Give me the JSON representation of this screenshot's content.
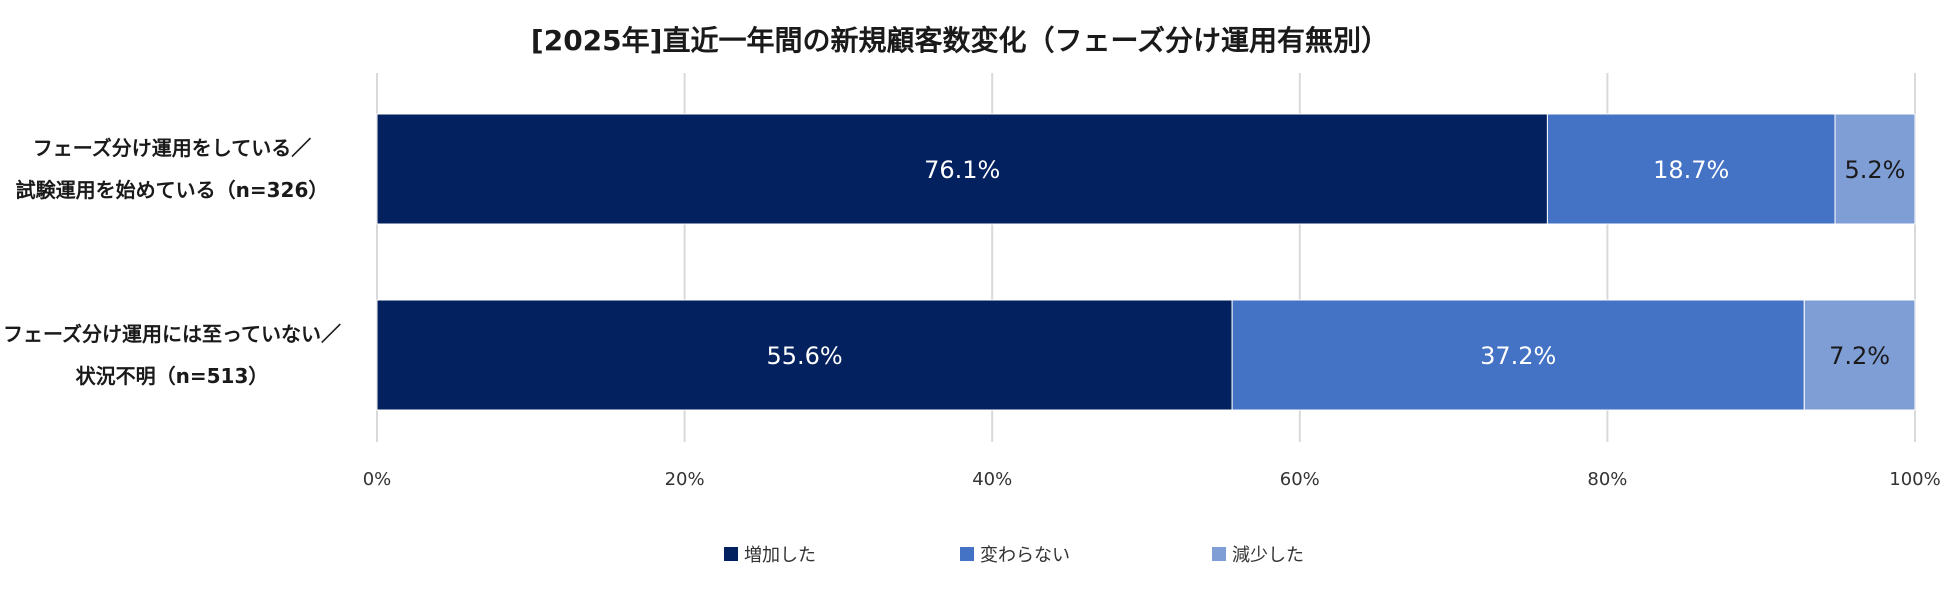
{
  "chart_data": {
    "type": "bar",
    "orientation": "horizontal",
    "stacked": true,
    "title": "[2025年]直近一年間の新規顧客数変化（フェーズ分け運用有無別）",
    "categories": [
      [
        "フェーズ分け運用をしている／",
        "試験運用を始めている（n=326）"
      ],
      [
        "フェーズ分け運用には至っていない／",
        "状況不明（n=513）"
      ]
    ],
    "series": [
      {
        "name": "増加した",
        "color": "#03215e",
        "label_color": "#ffffff",
        "values": [
          76.1,
          55.6
        ]
      },
      {
        "name": "変わらない",
        "color": "#4472c4",
        "label_color": "#ffffff",
        "values": [
          18.7,
          37.2
        ]
      },
      {
        "name": "減少した",
        "color": "#7f9ed6",
        "label_color": "#1a1a1a",
        "values": [
          5.2,
          7.2
        ]
      }
    ],
    "xlim": [
      0,
      100
    ],
    "xticks": [
      "0%",
      "20%",
      "40%",
      "60%",
      "80%",
      "100%"
    ],
    "grid": true,
    "legend_position": "bottom",
    "value_format": "%"
  }
}
